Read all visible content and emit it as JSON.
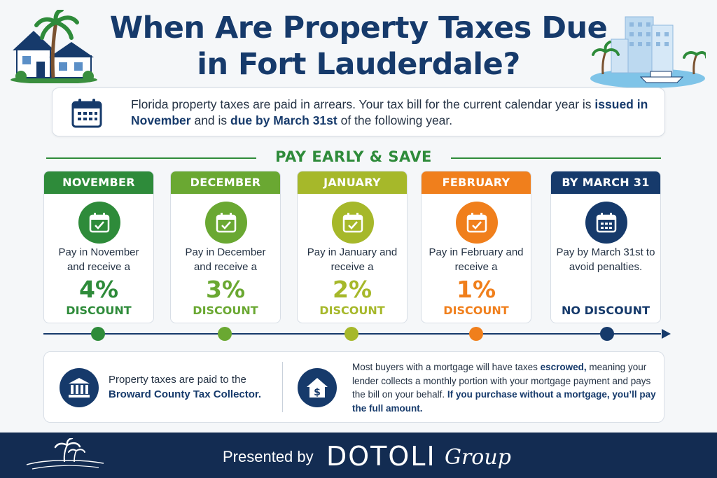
{
  "header": {
    "title": "When Are Property Taxes Due in Fort Lauderdale?"
  },
  "intro": {
    "text_before_issued": "Florida property taxes are paid in arrears. Your tax bill for the current calendar year is ",
    "issued": "issued in November",
    "text_between": " and is ",
    "due": "due by March 31st",
    "text_after": " of the following year."
  },
  "section": {
    "title": "PAY EARLY & SAVE"
  },
  "cards": [
    {
      "month": "NOVEMBER",
      "desc": "Pay in November and receive a",
      "pct": "4%",
      "discount": "DISCOUNT",
      "color": "#2e8b3a"
    },
    {
      "month": "DECEMBER",
      "desc": "Pay in December and receive a",
      "pct": "3%",
      "discount": "DISCOUNT",
      "color": "#6aa832"
    },
    {
      "month": "JANUARY",
      "desc": "Pay in January and receive a",
      "pct": "2%",
      "discount": "DISCOUNT",
      "color": "#a6b82a"
    },
    {
      "month": "FEBRUARY",
      "desc": "Pay in February and receive a",
      "pct": "1%",
      "discount": "DISCOUNT",
      "color": "#f07f1c"
    },
    {
      "month": "BY MARCH 31",
      "desc": "Pay by March 31st to avoid penalties.",
      "pct": "",
      "discount": "NO DISCOUNT",
      "color": "#163a6b"
    }
  ],
  "info": {
    "left_text": "Property taxes are paid to the ",
    "left_bold": "Broward County Tax Collector.",
    "right_text1": "Most buyers with a mortgage will have taxes ",
    "right_bold1": "escrowed,",
    "right_text2": " meaning your lender collects a monthly portion with your mortgage payment and pays the bill on your behalf. ",
    "right_bold2": "If you purchase without a mortgage, you’ll pay the full amount."
  },
  "footer": {
    "presented": "Presented by",
    "brand": "DOTOLI",
    "group": "Group"
  },
  "colors": {
    "navy": "#163a6b",
    "footer_bg": "#132c52",
    "green": "#2e8b3a"
  }
}
